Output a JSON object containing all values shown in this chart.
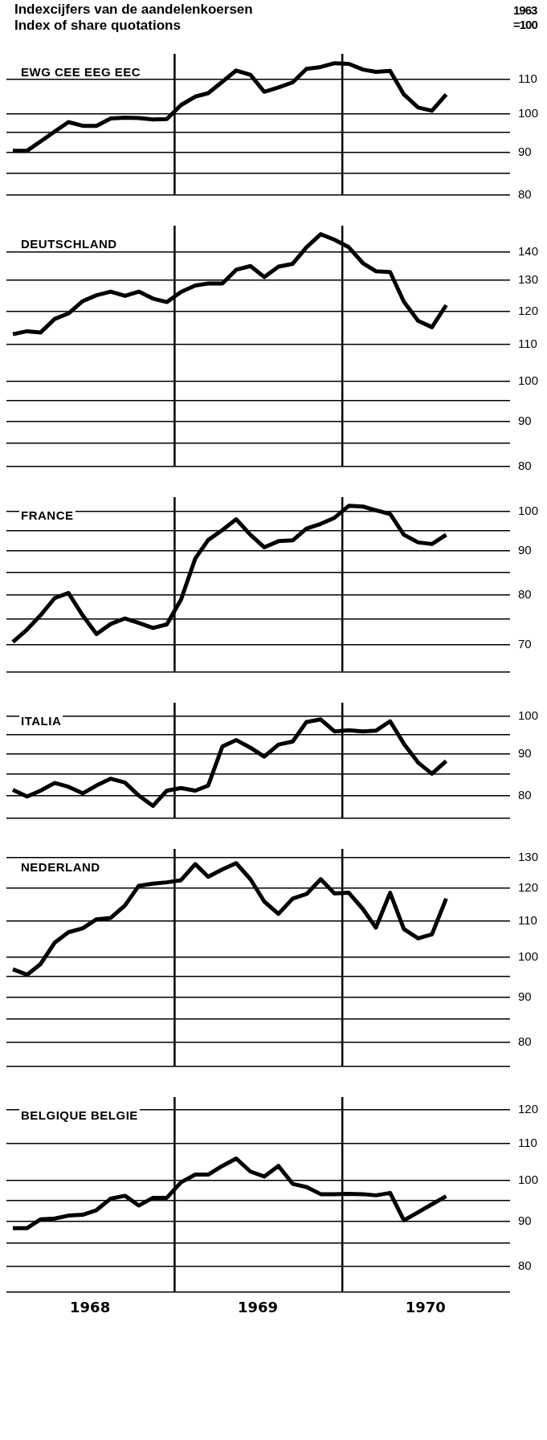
{
  "chart_data": [
    {
      "type": "line",
      "title": "Indexcijfers van de aandelenkoersen",
      "subtitle": "Index of share quotations",
      "ylabel": "1963 =100",
      "log": true,
      "grid": "y",
      "legend": false,
      "marker": "none",
      "line_style": "solid",
      "tick_labels": "y",
      "x": [
        "1968-01-15",
        "1968-02-15",
        "1968-03-15",
        "1968-04-15",
        "1968-05-15",
        "1968-06-15",
        "1968-07-15",
        "1968-08-15",
        "1968-09-15",
        "1968-10-15",
        "1968-11-15",
        "1968-12-15",
        "1969-01-15",
        "1969-02-15",
        "1969-03-15",
        "1969-04-15",
        "1969-05-15",
        "1969-06-15",
        "1969-07-15",
        "1969-08-15",
        "1969-09-15",
        "1969-10-15",
        "1969-11-15",
        "1969-12-15",
        "1970-01-15",
        "1970-02-15",
        "1970-03-15",
        "1970-04-15",
        "1970-05-15",
        "1970-06-15",
        "1970-07-15",
        "1970-08-15"
      ],
      "xlim": [
        "1968-01-01",
        "1971-01-01"
      ],
      "ylim": [
        80,
        118
      ],
      "yticks": [
        80,
        {
          "value": 85,
          "label": null
        },
        90,
        {
          "value": 95,
          "label": null
        },
        100,
        110
      ],
      "ref_lines": [
        {
          "axis": "x",
          "value": "1969-01-01",
          "color": "#000000"
        },
        {
          "axis": "x",
          "value": "1970-01-01",
          "color": "#000000"
        }
      ],
      "series": [
        {
          "name": "EWG CEE EEG EEC",
          "color": "#000000",
          "values": [
            90.4,
            90.4,
            92.7,
            95.3,
            97.8,
            96.8,
            96.8,
            98.8,
            99,
            98.9,
            98.5,
            98.6,
            102.5,
            104.9,
            105.9,
            109.3,
            112.7,
            111.4,
            106.3,
            107.6,
            109.1,
            113.2,
            113.8,
            115,
            114.8,
            113,
            112.3,
            112.6,
            105.5,
            101.8,
            100.9,
            105.5
          ]
        }
      ]
    },
    {
      "type": "line",
      "log": true,
      "grid": "y",
      "legend": false,
      "marker": "none",
      "line_style": "solid",
      "tick_labels": "y",
      "x": [
        "1968-01-15",
        "1968-02-15",
        "1968-03-15",
        "1968-04-15",
        "1968-05-15",
        "1968-06-15",
        "1968-07-15",
        "1968-08-15",
        "1968-09-15",
        "1968-10-15",
        "1968-11-15",
        "1968-12-15",
        "1969-01-15",
        "1969-02-15",
        "1969-03-15",
        "1969-04-15",
        "1969-05-15",
        "1969-06-15",
        "1969-07-15",
        "1969-08-15",
        "1969-09-15",
        "1969-10-15",
        "1969-11-15",
        "1969-12-15",
        "1970-01-15",
        "1970-02-15",
        "1970-03-15",
        "1970-04-15",
        "1970-05-15",
        "1970-06-15",
        "1970-07-15",
        "1970-08-15"
      ],
      "xlim": [
        "1968-01-01",
        "1971-01-01"
      ],
      "ylim": [
        80,
        150
      ],
      "yticks": [
        80,
        {
          "value": 85,
          "label": null
        },
        90,
        {
          "value": 95,
          "label": null
        },
        100,
        110,
        120,
        130,
        140
      ],
      "ref_lines": [
        {
          "axis": "x",
          "value": "1969-01-01",
          "color": "#000000"
        },
        {
          "axis": "x",
          "value": "1970-01-01",
          "color": "#000000"
        }
      ],
      "series": [
        {
          "name": "DEUTSCHLAND",
          "color": "#000000",
          "values": [
            113,
            113.9,
            113.5,
            117.6,
            119.3,
            123.2,
            125.1,
            126.3,
            124.9,
            126.3,
            124,
            122.9,
            126.2,
            128.3,
            129,
            129,
            133.7,
            135,
            131.2,
            134.8,
            135.8,
            141.8,
            146.7,
            144.6,
            141.8,
            136,
            133.2,
            132.9,
            123,
            117,
            115.1,
            121.9
          ]
        }
      ]
    },
    {
      "type": "line",
      "log": true,
      "grid": "y",
      "legend": false,
      "marker": "none",
      "line_style": "solid",
      "tick_labels": "y",
      "x": [
        "1968-01-15",
        "1968-02-15",
        "1968-03-15",
        "1968-04-15",
        "1968-05-15",
        "1968-06-15",
        "1968-07-15",
        "1968-08-15",
        "1968-09-15",
        "1968-10-15",
        "1968-11-15",
        "1968-12-15",
        "1969-01-15",
        "1969-02-15",
        "1969-03-15",
        "1969-04-15",
        "1969-05-15",
        "1969-06-15",
        "1969-07-15",
        "1969-08-15",
        "1969-09-15",
        "1969-10-15",
        "1969-11-15",
        "1969-12-15",
        "1970-01-15",
        "1970-02-15",
        "1970-03-15",
        "1970-04-15",
        "1970-05-15",
        "1970-06-15",
        "1970-07-15",
        "1970-08-15"
      ],
      "xlim": [
        "1968-01-01",
        "1971-01-01"
      ],
      "ylim": [
        65,
        104
      ],
      "yticks": [
        {
          "value": 65,
          "label": null
        },
        70,
        {
          "value": 75,
          "label": null
        },
        80,
        {
          "value": 85,
          "label": null
        },
        90,
        {
          "value": 95,
          "label": null
        },
        100
      ],
      "ref_lines": [
        {
          "axis": "x",
          "value": "1969-01-01",
          "color": "#000000"
        },
        {
          "axis": "x",
          "value": "1970-01-01",
          "color": "#000000"
        }
      ],
      "series": [
        {
          "name": "FRANCE",
          "color": "#000000",
          "values": [
            70.5,
            72.9,
            75.7,
            79.3,
            80.4,
            75.7,
            72,
            74,
            75.1,
            74.2,
            73.2,
            73.9,
            79,
            88.2,
            92.7,
            95.2,
            98,
            94,
            90.9,
            92.4,
            92.6,
            95.6,
            96.8,
            98.4,
            101.6,
            101.4,
            100.4,
            99.4,
            94,
            92.1,
            91.7,
            94
          ]
        }
      ]
    },
    {
      "type": "line",
      "log": true,
      "grid": "y",
      "legend": false,
      "marker": "none",
      "line_style": "solid",
      "tick_labels": "y",
      "x": [
        "1968-01-15",
        "1968-02-15",
        "1968-03-15",
        "1968-04-15",
        "1968-05-15",
        "1968-06-15",
        "1968-07-15",
        "1968-08-15",
        "1968-09-15",
        "1968-10-15",
        "1968-11-15",
        "1968-12-15",
        "1969-01-15",
        "1969-02-15",
        "1969-03-15",
        "1969-04-15",
        "1969-05-15",
        "1969-06-15",
        "1969-07-15",
        "1969-08-15",
        "1969-09-15",
        "1969-10-15",
        "1969-11-15",
        "1969-12-15",
        "1970-01-15",
        "1970-02-15",
        "1970-03-15",
        "1970-04-15",
        "1970-05-15",
        "1970-06-15",
        "1970-07-15",
        "1970-08-15"
      ],
      "xlim": [
        "1968-01-01",
        "1971-01-01"
      ],
      "ylim": [
        75,
        104
      ],
      "yticks": [
        {
          "value": 75,
          "label": null
        },
        80,
        {
          "value": 85,
          "label": null
        },
        90,
        {
          "value": 95,
          "label": null
        },
        100
      ],
      "ref_lines": [
        {
          "axis": "x",
          "value": "1969-01-01",
          "color": "#000000"
        },
        {
          "axis": "x",
          "value": "1970-01-01",
          "color": "#000000"
        }
      ],
      "series": [
        {
          "name": "ITALIA",
          "color": "#000000",
          "values": [
            81.3,
            79.8,
            81.1,
            82.9,
            82,
            80.5,
            82.3,
            83.9,
            83,
            80,
            77.7,
            81.1,
            81.7,
            81.1,
            82.3,
            91.9,
            93.6,
            91.6,
            89.3,
            92.4,
            93.2,
            98.5,
            99.2,
            95.9,
            96.2,
            95.9,
            96.1,
            98.7,
            92.6,
            87.8,
            85.1,
            88.2
          ]
        }
      ]
    },
    {
      "type": "line",
      "log": true,
      "grid": "y",
      "legend": false,
      "marker": "none",
      "line_style": "solid",
      "tick_labels": "y",
      "x": [
        "1968-01-15",
        "1968-02-15",
        "1968-03-15",
        "1968-04-15",
        "1968-05-15",
        "1968-06-15",
        "1968-07-15",
        "1968-08-15",
        "1968-09-15",
        "1968-10-15",
        "1968-11-15",
        "1968-12-15",
        "1969-01-15",
        "1969-02-15",
        "1969-03-15",
        "1969-04-15",
        "1969-05-15",
        "1969-06-15",
        "1969-07-15",
        "1969-08-15",
        "1969-09-15",
        "1969-10-15",
        "1969-11-15",
        "1969-12-15",
        "1970-01-15",
        "1970-02-15",
        "1970-03-15",
        "1970-04-15",
        "1970-05-15",
        "1970-06-15",
        "1970-07-15",
        "1970-08-15"
      ],
      "xlim": [
        "1968-01-01",
        "1971-01-01"
      ],
      "ylim": [
        75,
        133
      ],
      "yticks": [
        {
          "value": 75,
          "label": null
        },
        80,
        {
          "value": 85,
          "label": null
        },
        90,
        {
          "value": 95,
          "label": null
        },
        100,
        110,
        120,
        130
      ],
      "ref_lines": [
        {
          "axis": "x",
          "value": "1969-01-01",
          "color": "#000000"
        },
        {
          "axis": "x",
          "value": "1970-01-01",
          "color": "#000000"
        }
      ],
      "series": [
        {
          "name": "NEDERLAND",
          "color": "#000000",
          "values": [
            96.9,
            95.5,
            98.2,
            103.9,
            106.8,
            107.9,
            110.5,
            110.9,
            114.6,
            120.7,
            121.4,
            121.8,
            122.5,
            127.8,
            123.6,
            126,
            128.1,
            122.8,
            115.8,
            112.1,
            116.7,
            118.1,
            122.8,
            118.3,
            118.5,
            113.5,
            108.1,
            118.5,
            107.7,
            105.1,
            106.2,
            116.7
          ]
        }
      ]
    },
    {
      "type": "line",
      "log": true,
      "grid": "y",
      "legend": false,
      "marker": "none",
      "line_style": "solid",
      "x": [
        "1968-01-15",
        "1968-02-15",
        "1968-03-15",
        "1968-04-15",
        "1968-05-15",
        "1968-06-15",
        "1968-07-15",
        "1968-08-15",
        "1968-09-15",
        "1968-10-15",
        "1968-11-15",
        "1968-12-15",
        "1969-01-15",
        "1969-02-15",
        "1969-03-15",
        "1969-04-15",
        "1969-05-15",
        "1969-06-15",
        "1969-07-15",
        "1969-08-15",
        "1969-09-15",
        "1969-10-15",
        "1969-11-15",
        "1969-12-15",
        "1970-01-15",
        "1970-02-15",
        "1970-03-15",
        "1970-04-15",
        "1970-05-15",
        "1970-06-15",
        "1970-07-15",
        "1970-08-15"
      ],
      "xlim": [
        "1968-01-01",
        "1971-01-01"
      ],
      "xticks": [
        {
          "value": "1968-07-01",
          "label": "1968"
        },
        {
          "value": "1969-07-01",
          "label": "1969"
        },
        {
          "value": "1970-07-01",
          "label": "1970"
        }
      ],
      "ylim": [
        75,
        124
      ],
      "yticks": [
        {
          "value": 75,
          "label": null
        },
        80,
        {
          "value": 85,
          "label": null
        },
        90,
        {
          "value": 95,
          "label": null
        },
        100,
        110,
        120
      ],
      "ref_lines": [
        {
          "axis": "x",
          "value": "1969-01-01",
          "color": "#000000"
        },
        {
          "axis": "x",
          "value": "1970-01-01",
          "color": "#000000"
        }
      ],
      "series": [
        {
          "name": "BELGIQUE BELGIE",
          "color": "#000000",
          "values": [
            88.4,
            88.4,
            90.4,
            90.6,
            91.3,
            91.5,
            92.6,
            95.4,
            96.1,
            93.7,
            95.6,
            95.6,
            99.5,
            101.5,
            101.5,
            103.8,
            105.8,
            102.3,
            101,
            103.8,
            99.1,
            98.3,
            96.5,
            96.5,
            96.6,
            96.5,
            96.2,
            96.8,
            90.2,
            92.1,
            94,
            96
          ]
        }
      ]
    }
  ]
}
